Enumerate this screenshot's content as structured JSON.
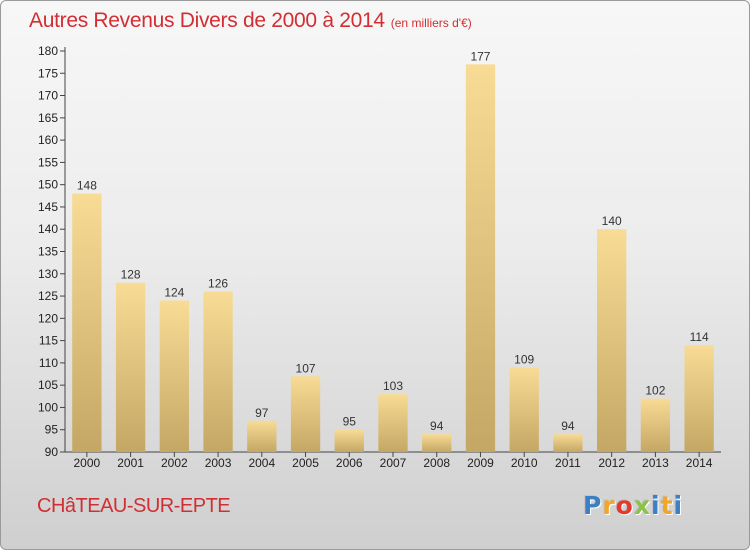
{
  "chart_data": {
    "type": "bar",
    "title": "Autres Revenus Divers de 2000 à 2014",
    "unit_label": "(en milliers d'€)",
    "categories": [
      "2000",
      "2001",
      "2002",
      "2003",
      "2004",
      "2005",
      "2006",
      "2007",
      "2008",
      "2009",
      "2010",
      "2011",
      "2012",
      "2013",
      "2014"
    ],
    "values": [
      148,
      128,
      124,
      126,
      97,
      107,
      95,
      103,
      94,
      177,
      109,
      94,
      140,
      102,
      114
    ],
    "ylim": [
      90,
      180
    ],
    "y_ticks": [
      90,
      95,
      100,
      105,
      110,
      115,
      120,
      125,
      130,
      135,
      140,
      145,
      150,
      155,
      160,
      165,
      170,
      175,
      180
    ],
    "grid": false,
    "colors": {
      "bar_light": "#f8dc95",
      "bar_dark": "#c4a764",
      "title": "#d22e33"
    }
  },
  "footer": {
    "city": "CHâTEAU-SUR-EPTE",
    "logo": "Proxiti",
    "logo_colors": [
      "#3b7fc4",
      "#f0a62a",
      "#e23b2e",
      "#8cc24a",
      "#3b7fc4",
      "#f0a62a",
      "#3b7fc4"
    ]
  }
}
